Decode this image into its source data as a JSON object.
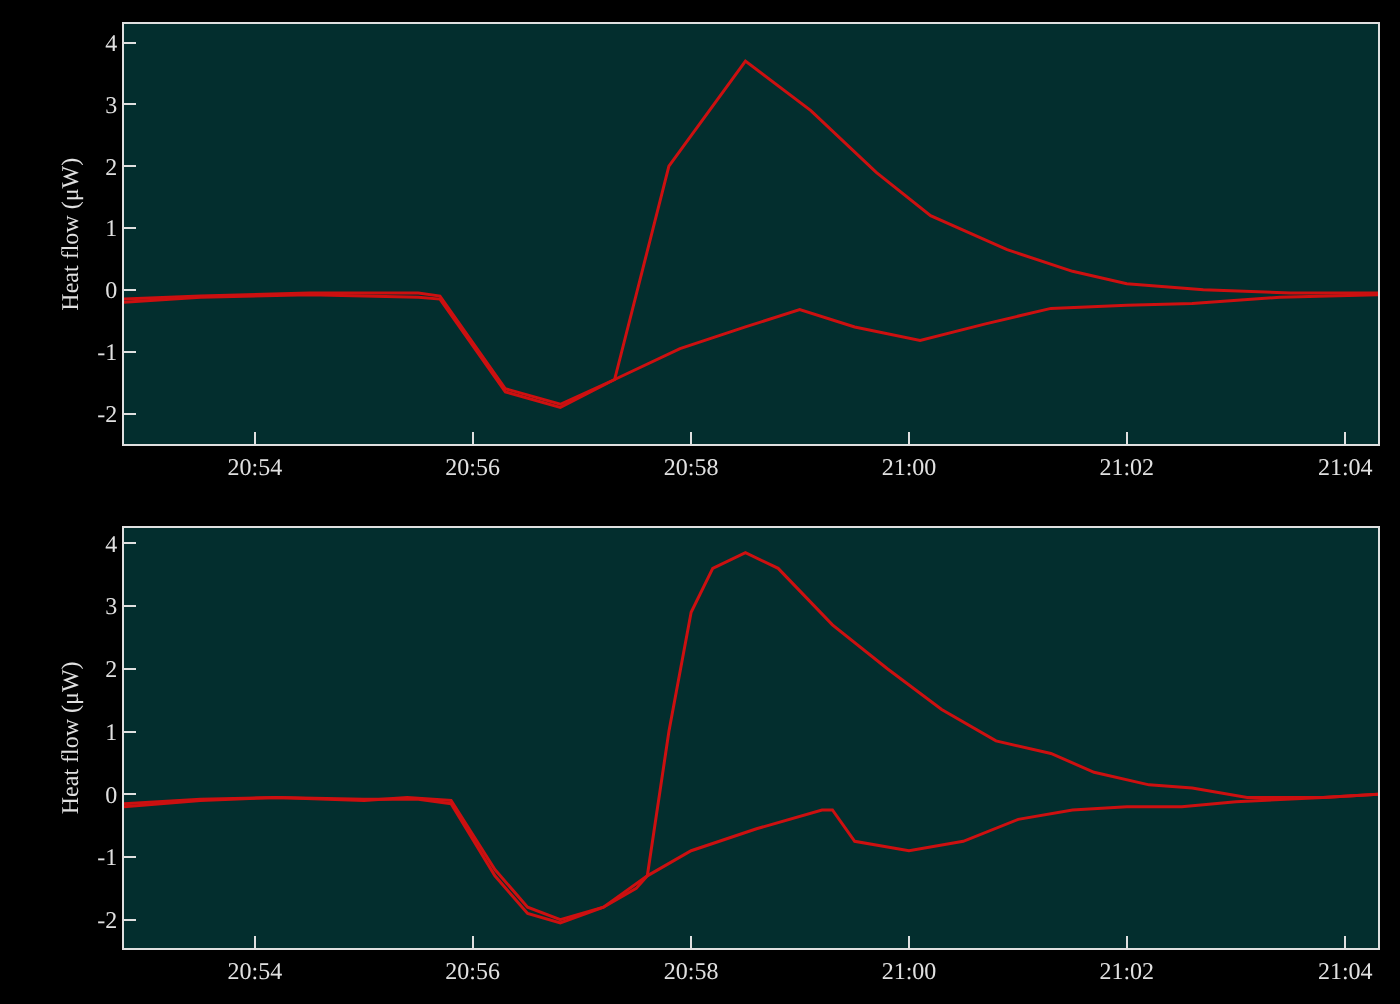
{
  "chart_data": [
    {
      "type": "line",
      "ylabel": "Heat flow (μW)",
      "xlim": [
        20.88,
        21.0717
      ],
      "ylim": [
        -2.5,
        4.3
      ],
      "xticks": [
        {
          "value": 20.9,
          "label": "20:54"
        },
        {
          "value": 20.9333,
          "label": "20:56"
        },
        {
          "value": 20.9667,
          "label": "20:58"
        },
        {
          "value": 21.0,
          "label": "21:00"
        },
        {
          "value": 21.0333,
          "label": "21:02"
        },
        {
          "value": 21.0667,
          "label": "21:04"
        }
      ],
      "yticks": [
        -2,
        -1,
        0,
        1,
        2,
        3,
        4
      ],
      "grid": false,
      "series": [
        {
          "color": "#cc1010",
          "x": [
            20.88,
            20.8917,
            20.9083,
            20.925,
            20.9283,
            20.9383,
            20.9467,
            20.955,
            20.9633,
            20.975,
            20.985,
            20.995,
            21.0033,
            21.015,
            21.025,
            21.0333,
            21.045,
            21.0583,
            21.0717
          ],
          "values": [
            -0.15,
            -0.1,
            -0.05,
            -0.05,
            -0.1,
            -1.6,
            -1.85,
            -1.45,
            2.0,
            3.7,
            2.9,
            1.9,
            1.2,
            0.65,
            0.3,
            0.1,
            0.0,
            -0.05,
            -0.05
          ]
        },
        {
          "color": "#cc1010",
          "x": [
            20.88,
            20.8917,
            20.9083,
            20.925,
            20.9283,
            20.9383,
            20.9467,
            20.955,
            20.965,
            20.975,
            20.9833,
            20.9917,
            21.0017,
            21.0117,
            21.0217,
            21.0333,
            21.0433,
            21.0567,
            21.0717
          ],
          "values": [
            -0.2,
            -0.12,
            -0.08,
            -0.12,
            -0.15,
            -1.65,
            -1.9,
            -1.45,
            -0.95,
            -0.6,
            -0.32,
            -0.6,
            -0.82,
            -0.55,
            -0.3,
            -0.25,
            -0.22,
            -0.12,
            -0.08
          ]
        }
      ]
    },
    {
      "type": "line",
      "ylabel": "Heat flow (μW)",
      "xlim": [
        20.88,
        21.0717
      ],
      "ylim": [
        -2.45,
        4.25
      ],
      "xticks": [
        {
          "value": 20.9,
          "label": "20:54"
        },
        {
          "value": 20.9333,
          "label": "20:56"
        },
        {
          "value": 20.9667,
          "label": "20:58"
        },
        {
          "value": 21.0,
          "label": "21:00"
        },
        {
          "value": 21.0333,
          "label": "21:02"
        },
        {
          "value": 21.0667,
          "label": "21:04"
        }
      ],
      "yticks": [
        -2,
        -1,
        0,
        1,
        2,
        3,
        4
      ],
      "grid": false,
      "series": [
        {
          "color": "#cc1010",
          "x": [
            20.88,
            20.8917,
            20.9033,
            20.9167,
            20.9233,
            20.93,
            20.9367,
            20.9417,
            20.9467,
            20.9533,
            20.9583,
            20.96,
            20.9633,
            20.9667,
            20.97,
            20.975,
            20.98,
            20.9883,
            20.9967,
            21.005,
            21.0133,
            21.0217,
            21.0283,
            21.0367,
            21.0433,
            21.0517,
            21.0633,
            21.0717
          ],
          "values": [
            -0.15,
            -0.08,
            -0.05,
            -0.1,
            -0.05,
            -0.1,
            -1.2,
            -1.8,
            -2.0,
            -1.8,
            -1.5,
            -1.3,
            1.0,
            2.9,
            3.6,
            3.85,
            3.6,
            2.7,
            2.0,
            1.35,
            0.85,
            0.65,
            0.35,
            0.15,
            0.1,
            -0.05,
            -0.05,
            0.0
          ]
        },
        {
          "color": "#cc1010",
          "x": [
            20.88,
            20.8917,
            20.9033,
            20.9167,
            20.925,
            20.93,
            20.9367,
            20.9417,
            20.9467,
            20.9533,
            20.96,
            20.9667,
            20.9767,
            20.9867,
            20.9883,
            20.9917,
            21.0,
            21.0083,
            21.0167,
            21.025,
            21.0333,
            21.0417,
            21.05,
            21.0633,
            21.0717
          ],
          "values": [
            -0.2,
            -0.1,
            -0.05,
            -0.08,
            -0.08,
            -0.15,
            -1.3,
            -1.9,
            -2.05,
            -1.8,
            -1.3,
            -0.9,
            -0.55,
            -0.25,
            -0.25,
            -0.75,
            -0.9,
            -0.75,
            -0.4,
            -0.25,
            -0.2,
            -0.2,
            -0.12,
            -0.05,
            0.0
          ]
        }
      ]
    }
  ]
}
